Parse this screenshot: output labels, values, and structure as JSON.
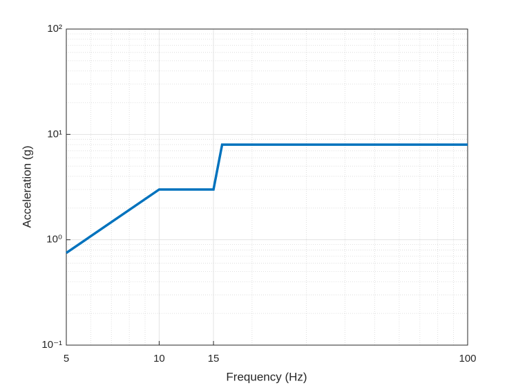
{
  "chart_data": {
    "type": "line",
    "xlabel": "Frequency (Hz)",
    "ylabel": "Acceleration (g)",
    "x": [
      5,
      10,
      15,
      16,
      100
    ],
    "series": [
      {
        "color": "#0072bd",
        "values": [
          0.75,
          3,
          3,
          8,
          8
        ]
      }
    ],
    "xscale": "log",
    "yscale": "log",
    "xlim": [
      5,
      100
    ],
    "ylim": [
      0.1,
      100
    ],
    "xticks": [
      5,
      10,
      15,
      100
    ],
    "yticks": [
      {
        "value": 0.1,
        "label": "10⁻¹"
      },
      {
        "value": 1,
        "label": "10⁰"
      },
      {
        "value": 10,
        "label": "10¹"
      },
      {
        "value": 100,
        "label": "10²"
      }
    ],
    "grid": true,
    "minor_grid": true
  }
}
